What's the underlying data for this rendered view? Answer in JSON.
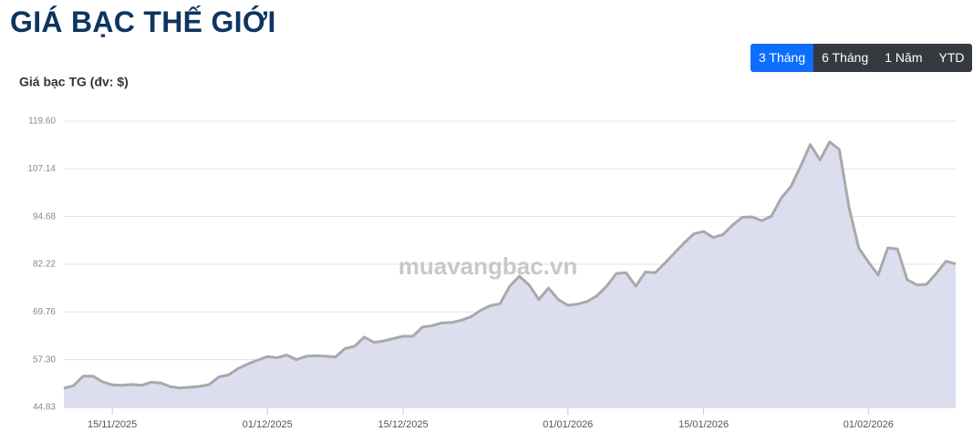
{
  "header": {
    "title": "GIÁ BẠC THẾ GIỚI"
  },
  "range_buttons": {
    "items": [
      "3 Tháng",
      "6 Tháng",
      "1 Năm",
      "YTD"
    ],
    "active": "3 Tháng"
  },
  "chart_data": {
    "type": "area",
    "title": "Giá bạc TG (đv: $)",
    "watermark": "muavangbac.vn",
    "x": [
      "10/11/2025",
      "11/11/2025",
      "12/11/2025",
      "13/11/2025",
      "14/11/2025",
      "15/11/2025",
      "16/11/2025",
      "17/11/2025",
      "18/11/2025",
      "19/11/2025",
      "20/11/2025",
      "21/11/2025",
      "22/11/2025",
      "23/11/2025",
      "24/11/2025",
      "25/11/2025",
      "26/11/2025",
      "27/11/2025",
      "28/11/2025",
      "29/11/2025",
      "30/11/2025",
      "01/12/2025",
      "02/12/2025",
      "03/12/2025",
      "04/12/2025",
      "05/12/2025",
      "06/12/2025",
      "07/12/2025",
      "08/12/2025",
      "09/12/2025",
      "10/12/2025",
      "11/12/2025",
      "12/12/2025",
      "13/12/2025",
      "14/12/2025",
      "15/12/2025",
      "16/12/2025",
      "17/12/2025",
      "18/12/2025",
      "19/12/2025",
      "20/12/2025",
      "21/12/2025",
      "22/12/2025",
      "23/12/2025",
      "24/12/2025",
      "25/12/2025",
      "26/12/2025",
      "27/12/2025",
      "28/12/2025",
      "29/12/2025",
      "30/12/2025",
      "31/12/2025",
      "01/01/2026",
      "02/01/2026",
      "03/01/2026",
      "04/01/2026",
      "05/01/2026",
      "06/01/2026",
      "07/01/2026",
      "08/01/2026",
      "09/01/2026",
      "10/01/2026",
      "11/01/2026",
      "12/01/2026",
      "13/01/2026",
      "14/01/2026",
      "15/01/2026",
      "16/01/2026",
      "17/01/2026",
      "18/01/2026",
      "19/01/2026",
      "20/01/2026",
      "21/01/2026",
      "22/01/2026",
      "23/01/2026",
      "24/01/2026",
      "25/01/2026",
      "26/01/2026",
      "27/01/2026",
      "28/01/2026",
      "29/01/2026",
      "30/01/2026",
      "31/01/2026",
      "01/02/2026",
      "02/02/2026",
      "03/02/2026",
      "04/02/2026",
      "05/02/2026",
      "06/02/2026",
      "07/02/2026",
      "08/02/2026",
      "09/02/2026",
      "10/02/2026"
    ],
    "series": [
      {
        "color": "#a9a9a9",
        "fill": "#dcdeef",
        "values": [
          49.8,
          50.5,
          53.0,
          53.0,
          51.5,
          50.7,
          50.6,
          50.8,
          50.6,
          51.4,
          51.2,
          50.2,
          49.9,
          50.1,
          50.3,
          50.8,
          52.8,
          53.3,
          55.0,
          56.2,
          57.2,
          58.1,
          57.8,
          58.5,
          57.3,
          58.2,
          58.3,
          58.2,
          58.0,
          60.2,
          60.8,
          63.2,
          61.8,
          62.2,
          62.8,
          63.4,
          63.4,
          65.8,
          66.2,
          66.9,
          67.0,
          67.6,
          68.5,
          70.2,
          71.4,
          71.9,
          76.5,
          79.1,
          76.8,
          73.0,
          76.0,
          73.0,
          71.5,
          71.8,
          72.5,
          74.0,
          76.5,
          79.8,
          80.0,
          76.5,
          80.2,
          80.0,
          82.5,
          85.2,
          87.8,
          90.2,
          90.8,
          89.2,
          90.0,
          92.5,
          94.5,
          94.6,
          93.6,
          94.8,
          99.5,
          102.5,
          107.8,
          113.5,
          109.5,
          114.2,
          112.2,
          97.0,
          86.5,
          82.8,
          79.4,
          86.5,
          86.2,
          78.2,
          76.8,
          77.0,
          79.8,
          83.0,
          82.3
        ]
      }
    ],
    "xlim": [
      "10/11/2025",
      "10/02/2026"
    ],
    "xticks": [
      "15/11/2025",
      "01/12/2025",
      "15/12/2025",
      "01/01/2026",
      "15/01/2026",
      "01/02/2026"
    ],
    "ylim": [
      44.83,
      119.6
    ],
    "yticks": [
      44.83,
      {
        "value": 57.3,
        "label": "57.30"
      },
      69.76,
      82.22,
      94.68,
      107.14,
      {
        "value": 119.6,
        "label": "119.60"
      }
    ],
    "grid": true
  }
}
